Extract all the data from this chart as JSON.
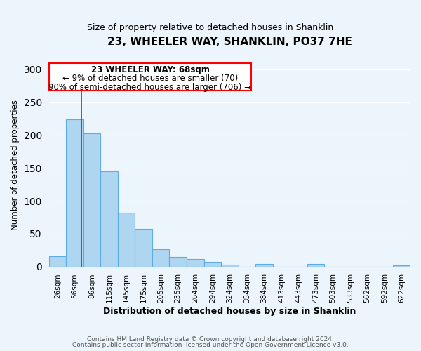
{
  "title": "23, WHEELER WAY, SHANKLIN, PO37 7HE",
  "subtitle": "Size of property relative to detached houses in Shanklin",
  "xlabel": "Distribution of detached houses by size in Shanklin",
  "ylabel": "Number of detached properties",
  "bin_labels": [
    "26sqm",
    "56sqm",
    "86sqm",
    "115sqm",
    "145sqm",
    "175sqm",
    "205sqm",
    "235sqm",
    "264sqm",
    "294sqm",
    "324sqm",
    "354sqm",
    "384sqm",
    "413sqm",
    "443sqm",
    "473sqm",
    "503sqm",
    "533sqm",
    "562sqm",
    "592sqm",
    "622sqm"
  ],
  "bar_heights": [
    16,
    224,
    203,
    145,
    82,
    57,
    26,
    14,
    11,
    7,
    3,
    0,
    4,
    0,
    0,
    4,
    0,
    0,
    0,
    0,
    2
  ],
  "bar_color": "#AED6F1",
  "bar_edge_color": "#5DADE2",
  "ylim": [
    0,
    310
  ],
  "yticks": [
    0,
    50,
    100,
    150,
    200,
    250,
    300
  ],
  "red_line_x": 1.4,
  "annotation_title": "23 WHEELER WAY: 68sqm",
  "annotation_line1": "← 9% of detached houses are smaller (70)",
  "annotation_line2": "90% of semi-detached houses are larger (706) →",
  "footer1": "Contains HM Land Registry data © Crown copyright and database right 2024.",
  "footer2": "Contains public sector information licensed under the Open Government Licence v3.0.",
  "background_color": "#EBF5FB",
  "plot_bg_color": "#EBF5FB",
  "grid_color": "#FFFFFF"
}
